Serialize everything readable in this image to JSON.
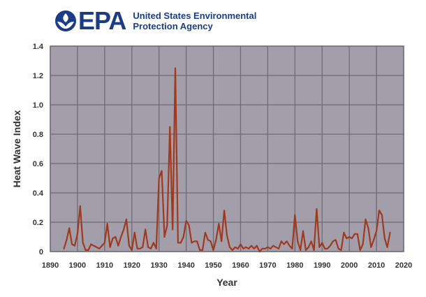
{
  "header": {
    "logo_text": "EPA",
    "agency_line1": "United States Environmental",
    "agency_line2": "Protection Agency"
  },
  "colors": {
    "plot_bg": "#a29fab",
    "grid": "#6e6b76",
    "line": "#a0391e",
    "brand": "#1b3c87"
  },
  "chart_data": {
    "type": "line",
    "title": "",
    "xlabel": "Year",
    "ylabel": "Heat Wave Index",
    "xlim": [
      1890,
      2020
    ],
    "ylim": [
      0,
      1.4
    ],
    "xticks": [
      1890,
      1900,
      1910,
      1920,
      1930,
      1940,
      1950,
      1960,
      1970,
      1980,
      1990,
      2000,
      2010,
      2020
    ],
    "yticks": [
      "0",
      "0.2",
      "0.4",
      "0.6",
      "0.8",
      "1.0",
      "1.2",
      "1.4"
    ],
    "grid": true,
    "series": [
      {
        "x": [
          1895,
          1896,
          1897,
          1898,
          1899,
          1900,
          1901,
          1902,
          1903,
          1904,
          1905,
          1906,
          1907,
          1908,
          1909,
          1910,
          1911,
          1912,
          1913,
          1914,
          1915,
          1916,
          1917,
          1918,
          1919,
          1920,
          1921,
          1922,
          1923,
          1924,
          1925,
          1926,
          1927,
          1928,
          1929,
          1930,
          1931,
          1932,
          1933,
          1934,
          1935,
          1936,
          1937,
          1938,
          1939,
          1940,
          1941,
          1942,
          1943,
          1944,
          1945,
          1946,
          1947,
          1948,
          1949,
          1950,
          1951,
          1952,
          1953,
          1954,
          1955,
          1956,
          1957,
          1958,
          1959,
          1960,
          1961,
          1962,
          1963,
          1964,
          1965,
          1966,
          1967,
          1968,
          1969,
          1970,
          1971,
          1972,
          1973,
          1974,
          1975,
          1976,
          1977,
          1978,
          1979,
          1980,
          1981,
          1982,
          1983,
          1984,
          1985,
          1986,
          1987,
          1988,
          1989,
          1990,
          1991,
          1992,
          1993,
          1994,
          1995,
          1996,
          1997,
          1998,
          1999,
          2000,
          2001,
          2002,
          2003,
          2004,
          2005,
          2006,
          2007,
          2008,
          2009,
          2010,
          2011,
          2012,
          2013,
          2014,
          2015
        ],
        "values": [
          0.02,
          0.08,
          0.16,
          0.05,
          0.04,
          0.12,
          0.31,
          0.06,
          0.01,
          0.01,
          0.05,
          0.04,
          0.03,
          0.02,
          0.04,
          0.06,
          0.19,
          0.03,
          0.09,
          0.1,
          0.04,
          0.1,
          0.15,
          0.22,
          0.04,
          0.01,
          0.13,
          0.02,
          0.02,
          0.03,
          0.15,
          0.03,
          0.02,
          0.06,
          0.02,
          0.5,
          0.55,
          0.1,
          0.18,
          0.85,
          0.15,
          1.25,
          0.06,
          0.06,
          0.1,
          0.21,
          0.18,
          0.06,
          0.07,
          0.07,
          0.01,
          0.01,
          0.13,
          0.08,
          0.07,
          0.01,
          0.08,
          0.19,
          0.07,
          0.28,
          0.11,
          0.03,
          0.01,
          0.03,
          0.02,
          0.05,
          0.02,
          0.03,
          0.02,
          0.04,
          0.02,
          0.04,
          0.0,
          0.02,
          0.02,
          0.03,
          0.02,
          0.04,
          0.03,
          0.02,
          0.07,
          0.05,
          0.07,
          0.04,
          0.02,
          0.25,
          0.07,
          0.01,
          0.14,
          0.01,
          0.03,
          0.07,
          0.01,
          0.29,
          0.03,
          0.06,
          0.02,
          0.02,
          0.04,
          0.07,
          0.08,
          0.02,
          0.01,
          0.13,
          0.09,
          0.1,
          0.09,
          0.12,
          0.12,
          0.01,
          0.05,
          0.22,
          0.16,
          0.03,
          0.08,
          0.14,
          0.28,
          0.25,
          0.09,
          0.03,
          0.13
        ]
      }
    ]
  }
}
